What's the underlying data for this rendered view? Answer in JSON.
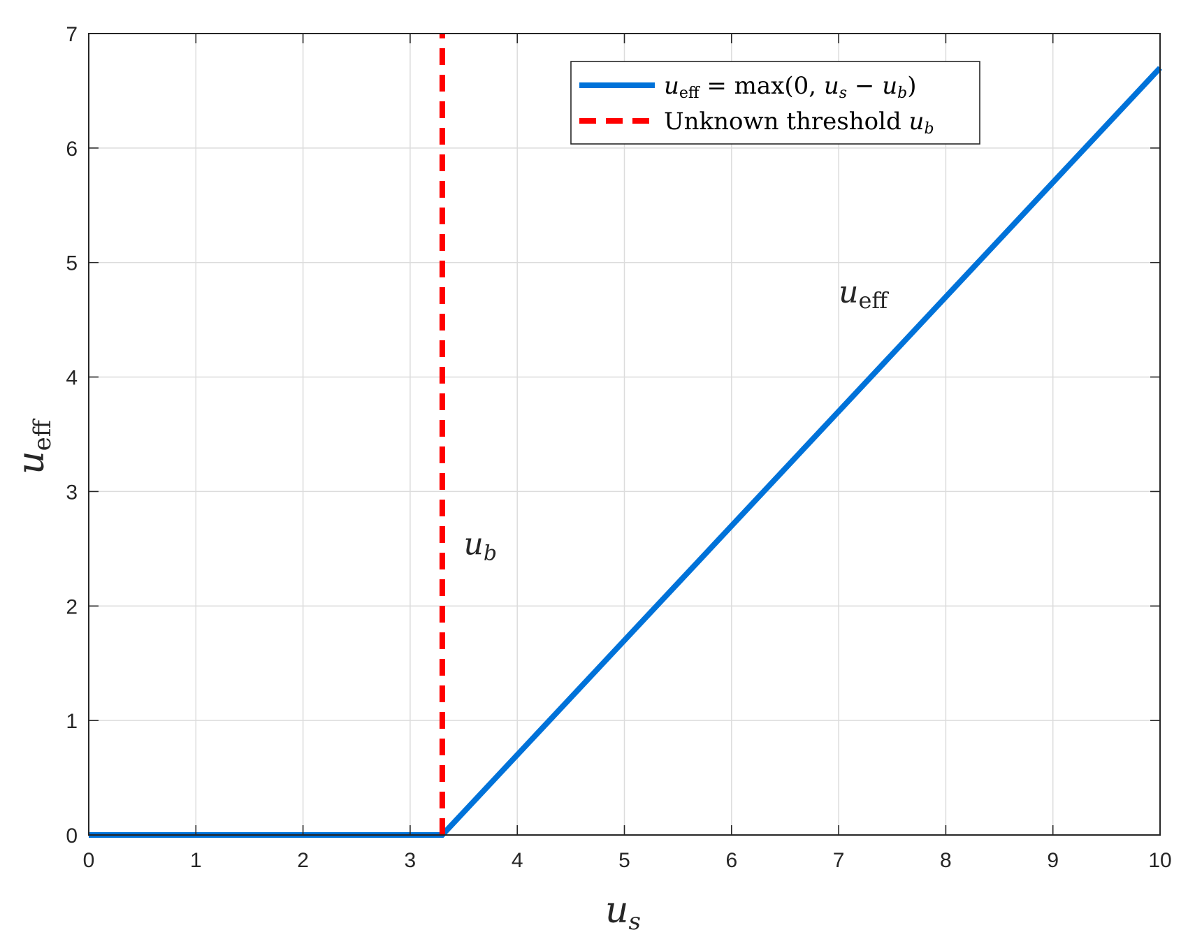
{
  "chart_data": {
    "type": "line",
    "xlabel": {
      "main": "u",
      "sub": "s"
    },
    "ylabel": {
      "main": "u",
      "sub": "eff"
    },
    "xlim": [
      0,
      10
    ],
    "ylim": [
      0,
      7
    ],
    "xticks": [
      0,
      1,
      2,
      3,
      4,
      5,
      6,
      7,
      8,
      9,
      10
    ],
    "yticks": [
      0,
      1,
      2,
      3,
      4,
      5,
      6,
      7
    ],
    "grid": true,
    "legend_position": "top-right",
    "series": [
      {
        "key": "ueff",
        "legend_text": "u_eff = max(0, u_s − u_b)",
        "style": "solid",
        "color": "#0072D9",
        "x": [
          0,
          3.3,
          10
        ],
        "y": [
          0,
          0,
          6.7
        ]
      },
      {
        "key": "threshold",
        "legend_text": "Unknown threshold u_b",
        "style": "dashed",
        "color": "#FF0000",
        "x": [
          3.3,
          3.3
        ],
        "y": [
          0,
          7
        ]
      }
    ],
    "annotations": [
      {
        "main": "u",
        "sub": "eff",
        "x": 7.0,
        "y": 4.65,
        "color": "#0072D9"
      },
      {
        "main": "u",
        "sub": "b",
        "x": 3.5,
        "y": 2.45,
        "color": "#FF0000"
      }
    ],
    "legend": {
      "ueff": {
        "pre": "u",
        "sub": "eff",
        "mid": " = max(0, ",
        "u2": "u",
        "sub2": "s",
        "minus": " − ",
        "u3": "u",
        "sub3": "b",
        "post": ")"
      },
      "threshold": {
        "text": "Unknown threshold ",
        "u": "u",
        "sub": "b"
      }
    }
  }
}
